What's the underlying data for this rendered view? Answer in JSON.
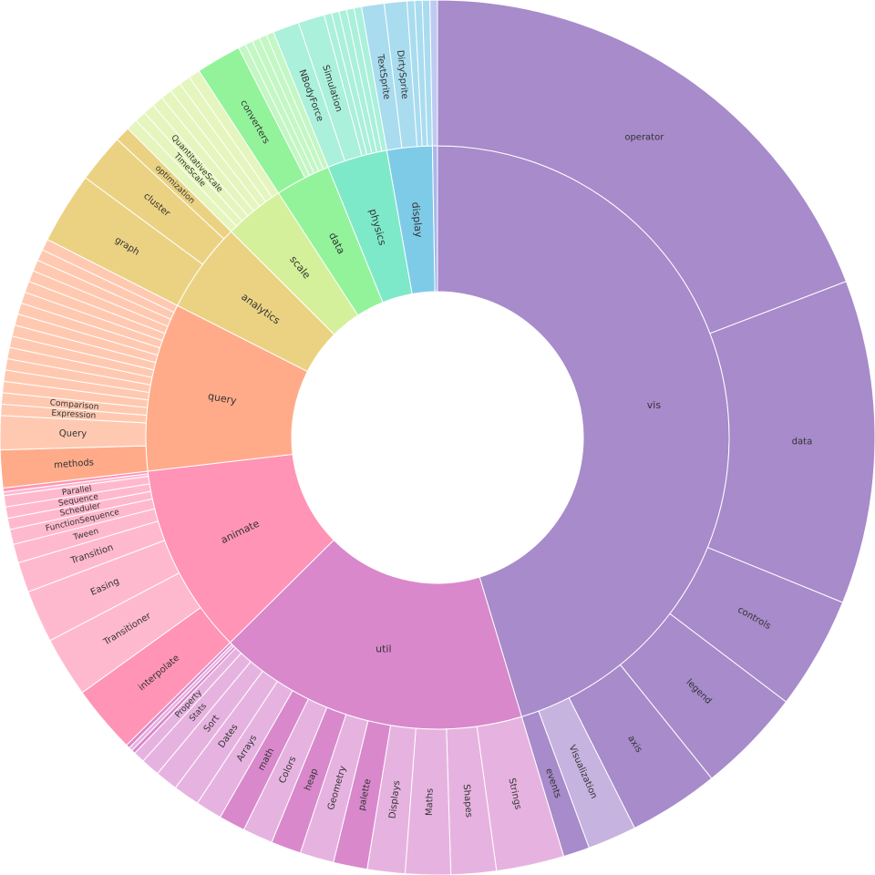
{
  "chart_data": {
    "type": "sunburst",
    "nodes": [
      {
        "label": "vis",
        "value": 163,
        "color": "#a78bca",
        "children": [
          {
            "label": "operator",
            "value": 69,
            "color": "#a78bca"
          },
          {
            "label": "data",
            "value": 43,
            "color": "#a78bca"
          },
          {
            "label": "controls",
            "value": 15,
            "color": "#a78bca"
          },
          {
            "label": "legend",
            "value": 14,
            "color": "#a78bca"
          },
          {
            "label": "axis",
            "value": 12,
            "color": "#a78bca"
          },
          {
            "label": "Visualization",
            "value": 6.5,
            "color": "#c6b3df"
          },
          {
            "label": "events",
            "value": 3.5,
            "color": "#a78bca"
          }
        ]
      },
      {
        "label": "util",
        "value": 62,
        "color": "#d988cc",
        "children": [
          {
            "label": "Strings",
            "value": 9,
            "color": "#e6b3e0"
          },
          {
            "label": "Shapes",
            "value": 6,
            "color": "#e6b3e0"
          },
          {
            "label": "Maths",
            "value": 6,
            "color": "#e6b3e0"
          },
          {
            "label": "Displays",
            "value": 5,
            "color": "#e6b3e0"
          },
          {
            "label": "palette",
            "value": 4.5,
            "color": "#d988cc"
          },
          {
            "label": "Geometry",
            "value": 4.5,
            "color": "#e6b3e0"
          },
          {
            "label": "heap",
            "value": 4,
            "color": "#d988cc"
          },
          {
            "label": "Colors",
            "value": 4,
            "color": "#e6b3e0"
          },
          {
            "label": "math",
            "value": 3.5,
            "color": "#d988cc"
          },
          {
            "label": "Arrays",
            "value": 3.5,
            "color": "#e6b3e0"
          },
          {
            "label": "Dates",
            "value": 3.5,
            "color": "#e6b3e0"
          },
          {
            "label": "Sort",
            "value": 3,
            "color": "#e6b3e0"
          },
          {
            "label": "Stats",
            "value": 2.5,
            "color": "#e6b3e0"
          },
          {
            "label": "Property",
            "value": 1.5,
            "color": "#e6b3e0"
          },
          {
            "label": null,
            "value": 0.5,
            "color": "#d988cc"
          },
          {
            "label": null,
            "value": 0.5,
            "color": "#e6b3e0"
          },
          {
            "label": null,
            "value": 0.5,
            "color": "#d988cc"
          }
        ]
      },
      {
        "label": "animate",
        "value": 38,
        "color": "#ff94b6",
        "children": [
          {
            "label": "interpolate",
            "value": 9,
            "color": "#ff94b6"
          },
          {
            "label": "Transitioner",
            "value": 8,
            "color": "#ffb9cf"
          },
          {
            "label": "Easing",
            "value": 7,
            "color": "#ffb9cf"
          },
          {
            "label": "Transition",
            "value": 4,
            "color": "#ffb9cf"
          },
          {
            "label": "Tween",
            "value": 2.5,
            "color": "#ffb9cf"
          },
          {
            "label": "FunctionSequence",
            "value": 2,
            "color": "#ffb9cf"
          },
          {
            "label": "Scheduler",
            "value": 1.5,
            "color": "#ffb9cf"
          },
          {
            "label": "Sequence",
            "value": 1.5,
            "color": "#ffb9cf"
          },
          {
            "label": "Parallel",
            "value": 1.5,
            "color": "#ffb9cf"
          },
          {
            "label": null,
            "value": 0.5,
            "color": "#ffb9cf"
          },
          {
            "label": null,
            "value": 0.5,
            "color": "#ff94b6"
          }
        ]
      },
      {
        "label": "query",
        "value": 33.5,
        "color": "#ffab8a",
        "children": [
          {
            "label": "methods",
            "value": 5,
            "color": "#ffab8a"
          },
          {
            "label": "Query",
            "value": 4.5,
            "color": "#ffc9b1"
          },
          {
            "label": "Expression",
            "value": 1.5,
            "color": "#ffc9b1"
          },
          {
            "label": "Comparison",
            "value": 1.5,
            "color": "#ffc9b1"
          },
          {
            "label": null,
            "value": 1.5,
            "color": "#ffc9b1"
          },
          {
            "label": null,
            "value": 1.5,
            "color": "#ffc9b1"
          },
          {
            "label": null,
            "value": 1.5,
            "color": "#ffc9b1"
          },
          {
            "label": null,
            "value": 1.5,
            "color": "#ffc9b1"
          },
          {
            "label": null,
            "value": 1.5,
            "color": "#ffc9b1"
          },
          {
            "label": null,
            "value": 1.5,
            "color": "#ffc9b1"
          },
          {
            "label": null,
            "value": 1.5,
            "color": "#ffc9b1"
          },
          {
            "label": null,
            "value": 1.5,
            "color": "#ffc9b1"
          },
          {
            "label": null,
            "value": 1.5,
            "color": "#ffc9b1"
          },
          {
            "label": null,
            "value": 1.5,
            "color": "#ffc9b1"
          },
          {
            "label": null,
            "value": 1.5,
            "color": "#ffc9b1"
          },
          {
            "label": null,
            "value": 1.5,
            "color": "#ffc9b1"
          },
          {
            "label": null,
            "value": 1.5,
            "color": "#ffc9b1"
          },
          {
            "label": null,
            "value": 1.5,
            "color": "#ffc9b1"
          }
        ]
      },
      {
        "label": "analytics",
        "value": 18,
        "color": "#ebd283",
        "children": [
          {
            "label": "graph",
            "value": 9.5,
            "color": "#ebd283"
          },
          {
            "label": "cluster",
            "value": 6.5,
            "color": "#ebd283"
          },
          {
            "label": "optimization",
            "value": 2,
            "color": "#ebd283"
          }
        ]
      },
      {
        "label": "scale",
        "value": 12,
        "color": "#d5f09a",
        "children": [
          {
            "label": null,
            "value": 1.5,
            "color": "#e4f6bd"
          },
          {
            "label": "TimeScale",
            "value": 1.5,
            "color": "#e4f6bd"
          },
          {
            "label": "QuantitativeScale",
            "value": 1.5,
            "color": "#e4f6bd"
          },
          {
            "label": null,
            "value": 1.5,
            "color": "#e4f6bd"
          },
          {
            "label": null,
            "value": 1.5,
            "color": "#e4f6bd"
          },
          {
            "label": null,
            "value": 1.5,
            "color": "#e4f6bd"
          },
          {
            "label": null,
            "value": 1.5,
            "color": "#e4f6bd"
          },
          {
            "label": null,
            "value": 1.5,
            "color": "#e4f6bd"
          }
        ]
      },
      {
        "label": "data",
        "value": 11,
        "color": "#93f39b",
        "children": [
          {
            "label": "converters",
            "value": 6,
            "color": "#93f39b"
          },
          {
            "label": null,
            "value": 1,
            "color": "#c3f7c4"
          },
          {
            "label": null,
            "value": 1,
            "color": "#c3f7c4"
          },
          {
            "label": null,
            "value": 1,
            "color": "#c3f7c4"
          },
          {
            "label": null,
            "value": 1,
            "color": "#c3f7c4"
          },
          {
            "label": null,
            "value": 1,
            "color": "#c3f7c4"
          }
        ]
      },
      {
        "label": "physics",
        "value": 12,
        "color": "#7de9c8",
        "children": [
          {
            "label": "NBodyForce",
            "value": 3.5,
            "color": "#abf0da"
          },
          {
            "label": "Simulation",
            "value": 3.5,
            "color": "#abf0da"
          },
          {
            "label": null,
            "value": 1,
            "color": "#abf0da"
          },
          {
            "label": null,
            "value": 1,
            "color": "#abf0da"
          },
          {
            "label": null,
            "value": 1,
            "color": "#abf0da"
          },
          {
            "label": null,
            "value": 1,
            "color": "#abf0da"
          },
          {
            "label": null,
            "value": 1,
            "color": "#abf0da"
          }
        ]
      },
      {
        "label": "display",
        "value": 9,
        "color": "#7ecbe8",
        "children": [
          {
            "label": "TextSprite",
            "value": 3,
            "color": "#a9dcef"
          },
          {
            "label": "DirtySprite",
            "value": 3,
            "color": "#a9dcef"
          },
          {
            "label": null,
            "value": 1,
            "color": "#a9dcef"
          },
          {
            "label": null,
            "value": 1,
            "color": "#a9dcef"
          },
          {
            "label": null,
            "value": 1,
            "color": "#a9dcef"
          }
        ]
      },
      {
        "label": null,
        "value": 1,
        "color": "#a9b7ee",
        "children": [
          {
            "label": null,
            "value": 1,
            "color": "#bfcaf3"
          }
        ]
      }
    ]
  }
}
